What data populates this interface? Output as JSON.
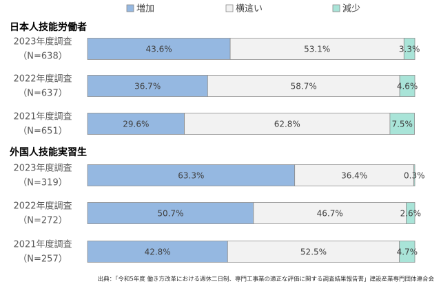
{
  "chart_data": [
    {
      "type": "bar",
      "title": "日本人技能労働者",
      "stacked": true,
      "orientation": "horizontal",
      "xlim": [
        0,
        100
      ],
      "categories": [
        [
          "2023年度調査",
          "（N=638）"
        ],
        [
          "2022年度調査",
          "（N=637）"
        ],
        [
          "2021年度調査",
          "（N=651）"
        ]
      ],
      "series": [
        {
          "name": "増加",
          "color": "#95b8e1",
          "values": [
            43.6,
            36.7,
            29.6
          ],
          "value_labels": [
            "43.6%",
            "36.7%",
            "29.6%"
          ]
        },
        {
          "name": "横這い",
          "color": "#f2f2f2",
          "values": [
            53.1,
            58.7,
            62.8
          ],
          "value_labels": [
            "53.1%",
            "58.7%",
            "62.8%"
          ]
        },
        {
          "name": "減少",
          "color": "#a9e4d8",
          "values": [
            3.3,
            4.6,
            7.5
          ],
          "value_labels": [
            "3.3%",
            "4.6%",
            "7.5%"
          ]
        }
      ]
    },
    {
      "type": "bar",
      "title": "外国人技能実習生",
      "stacked": true,
      "orientation": "horizontal",
      "xlim": [
        0,
        100
      ],
      "categories": [
        [
          "2023年度調査",
          "（N=319）"
        ],
        [
          "2022年度調査",
          "（N=272）"
        ],
        [
          "2021年度調査",
          "（N=257）"
        ]
      ],
      "series": [
        {
          "name": "増加",
          "color": "#95b8e1",
          "values": [
            63.3,
            50.7,
            42.8
          ],
          "value_labels": [
            "63.3%",
            "50.7%",
            "42.8%"
          ]
        },
        {
          "name": "横這い",
          "color": "#f2f2f2",
          "values": [
            36.4,
            46.7,
            52.5
          ],
          "value_labels": [
            "36.4%",
            "46.7%",
            "52.5%"
          ]
        },
        {
          "name": "減少",
          "color": "#a9e4d8",
          "values": [
            0.3,
            2.6,
            4.7
          ],
          "value_labels": [
            "0.3%",
            "2.6%",
            "4.7%"
          ]
        }
      ]
    }
  ],
  "source": "出典：「令和5年度 働き方改革における週休二日制、専門工事業の適正な評価に関する調査結果報告書」建設産業専門団体連合会"
}
